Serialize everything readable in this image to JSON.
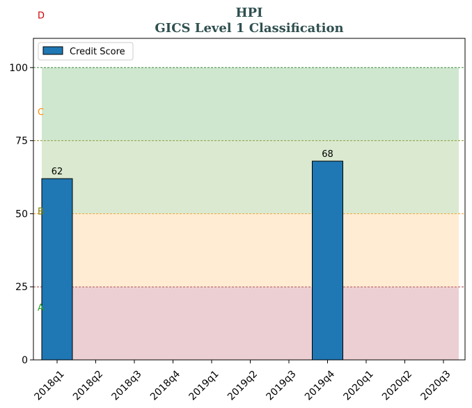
{
  "chart_data": {
    "type": "bar",
    "title": "HPI",
    "subtitle": "GICS Level 1 Classification",
    "xlabel": "",
    "ylabel": "",
    "categories": [
      "2018q1",
      "2018q2",
      "2018q3",
      "2018q4",
      "2019q1",
      "2019q2",
      "2019q3",
      "2019q4",
      "2020q1",
      "2020q2",
      "2020q3"
    ],
    "series": [
      {
        "name": "Credit Score",
        "values": [
          62,
          null,
          null,
          null,
          null,
          null,
          null,
          68,
          null,
          null,
          null
        ],
        "color": "#1f77b4"
      }
    ],
    "ylim": [
      0,
      110
    ],
    "yticks": [
      0,
      25,
      50,
      75,
      100
    ],
    "data_labels": [
      "62",
      "68"
    ],
    "legend_position": "top-left",
    "grid": false,
    "bands": [
      {
        "label": "A",
        "from": 0,
        "to": 25,
        "fill": "#d9a0a8",
        "line": "#8b0000",
        "text_color": "#2ca02c",
        "label_value": 18
      },
      {
        "label": "B",
        "from": 25,
        "to": 50,
        "fill": "#ffd9a8",
        "line": "#ff8c00",
        "text_color": "#808000",
        "label_value": 51
      },
      {
        "label": "C",
        "from": 50,
        "to": 75,
        "fill": "#b5d4a0",
        "line": "#808000",
        "text_color": "#ff8c00",
        "label_value": 85
      },
      {
        "label": "D",
        "from": 75,
        "to": 100,
        "fill": "#9fd0a0",
        "line": "#006400",
        "text_color": "#cc0000",
        "label_value": 118
      }
    ]
  }
}
